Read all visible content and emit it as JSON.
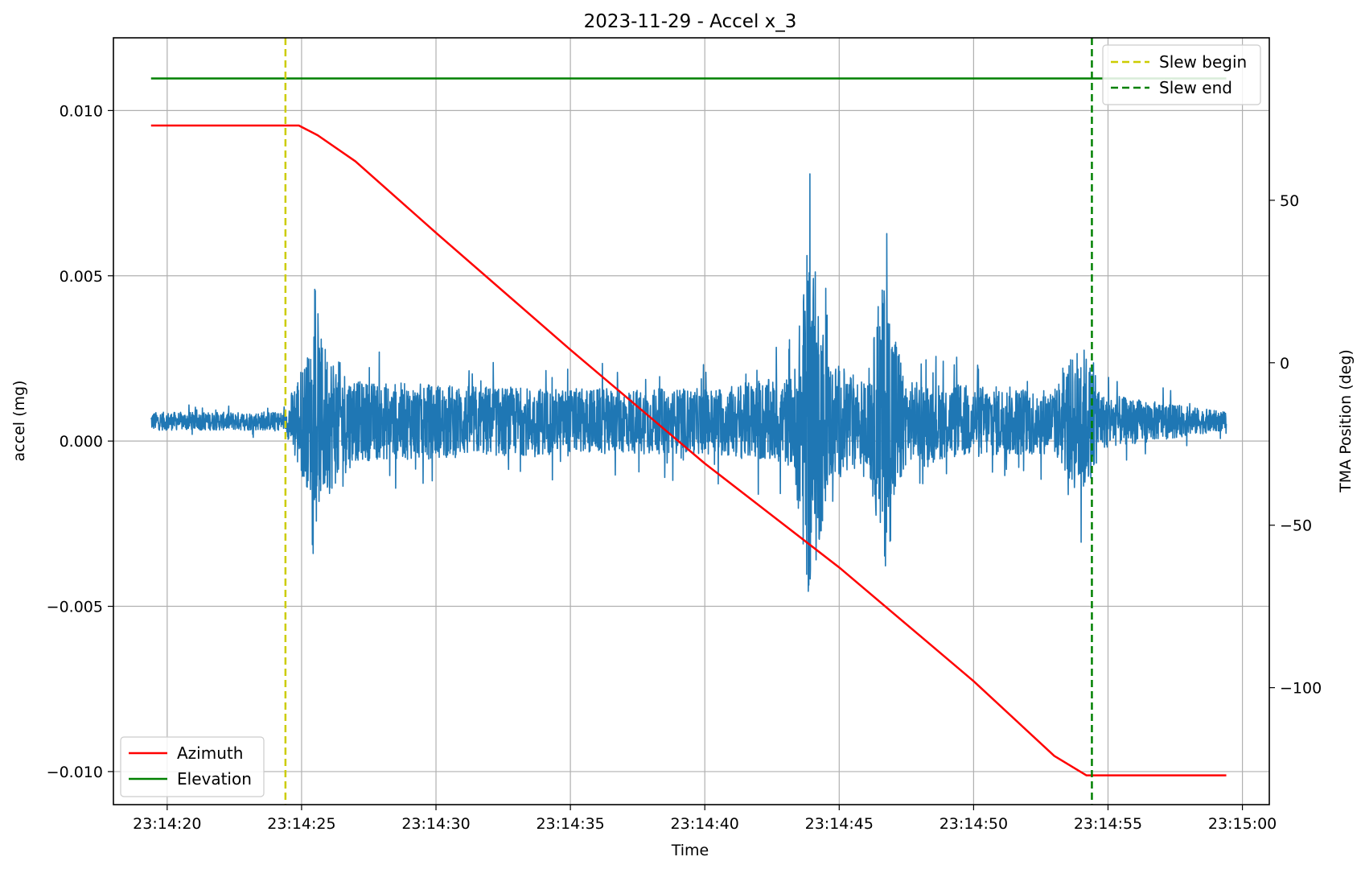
{
  "chart_data": {
    "type": "line",
    "title": "2023-11-29 - Accel x_3",
    "xlabel": "Time",
    "ylabel": "accel (mg)",
    "y2label": "TMA Position (deg)",
    "xlim": [
      "23:14:18",
      "23:15:01"
    ],
    "x_ticks": [
      "23:14:20",
      "23:14:25",
      "23:14:30",
      "23:14:35",
      "23:14:40",
      "23:14:45",
      "23:14:50",
      "23:14:55",
      "23:15:00"
    ],
    "ylim": [
      -0.011,
      0.0122
    ],
    "y_ticks": [
      0.01,
      0.005,
      0.0,
      -0.005,
      -0.01
    ],
    "y_tick_labels": [
      "0.010",
      "0.005",
      "0.000",
      "−0.005",
      "−0.010"
    ],
    "y2lim": [
      -136,
      100
    ],
    "y2_ticks": [
      50,
      0,
      -50,
      -100
    ],
    "y2_tick_labels": [
      "50",
      "0",
      "−50",
      "−100"
    ],
    "grid": true,
    "series": [
      {
        "name": "Azimuth",
        "axis": "right",
        "color": "#ff0000",
        "x": [
          "23:14:19.4",
          "23:14:24.9",
          "23:14:25.6",
          "23:14:27",
          "23:14:30",
          "23:14:35",
          "23:14:40",
          "23:14:45",
          "23:14:50",
          "23:14:53",
          "23:14:54.2",
          "23:14:59.4"
        ],
        "y": [
          73,
          73,
          70,
          62,
          40,
          4,
          -31,
          -63,
          -98,
          -121,
          -127,
          -127
        ]
      },
      {
        "name": "Elevation",
        "axis": "right",
        "color": "#008000",
        "x": [
          "23:14:19.4",
          "23:14:59.4"
        ],
        "y": [
          87.5,
          87.5
        ]
      },
      {
        "axis": "left",
        "color": "#1f77b4",
        "x_range": [
          "23:14:19.4",
          "23:14:59.4"
        ],
        "baseline": 0.0006,
        "envelope": [
          {
            "t": "23:14:19.4",
            "amp": 0.0005
          },
          {
            "t": "23:14:24.4",
            "amp": 0.0005
          },
          {
            "t": "23:14:24.8",
            "amp": 0.0025
          },
          {
            "t": "23:14:25.6",
            "amp": 0.0048
          },
          {
            "t": "23:14:27",
            "amp": 0.0022
          },
          {
            "t": "23:14:35",
            "amp": 0.0018
          },
          {
            "t": "23:14:40",
            "amp": 0.0018
          },
          {
            "t": "23:14:43.3",
            "amp": 0.0025
          },
          {
            "t": "23:14:43.9",
            "amp": 0.0105
          },
          {
            "t": "23:14:44.6",
            "amp": 0.0035
          },
          {
            "t": "23:14:46",
            "amp": 0.0022
          },
          {
            "t": "23:14:46.7",
            "amp": 0.0082
          },
          {
            "t": "23:14:47.5",
            "amp": 0.0022
          },
          {
            "t": "23:14:53",
            "amp": 0.0018
          },
          {
            "t": "23:14:54",
            "amp": 0.0045
          },
          {
            "t": "23:14:54.8",
            "amp": 0.0015
          },
          {
            "t": "23:14:59.4",
            "amp": 0.0005
          }
        ]
      }
    ],
    "vlines": [
      {
        "name": "Slew begin",
        "x": "23:14:24.4",
        "color": "#cccc00",
        "style": "dashed"
      },
      {
        "name": "Slew end",
        "x": "23:14:54.4",
        "color": "#008000",
        "style": "dashed"
      }
    ],
    "legends": [
      {
        "placement": "lower-left",
        "entries": [
          "Azimuth",
          "Elevation"
        ]
      },
      {
        "placement": "upper-right",
        "entries": [
          "Slew begin",
          "Slew end"
        ]
      }
    ]
  }
}
